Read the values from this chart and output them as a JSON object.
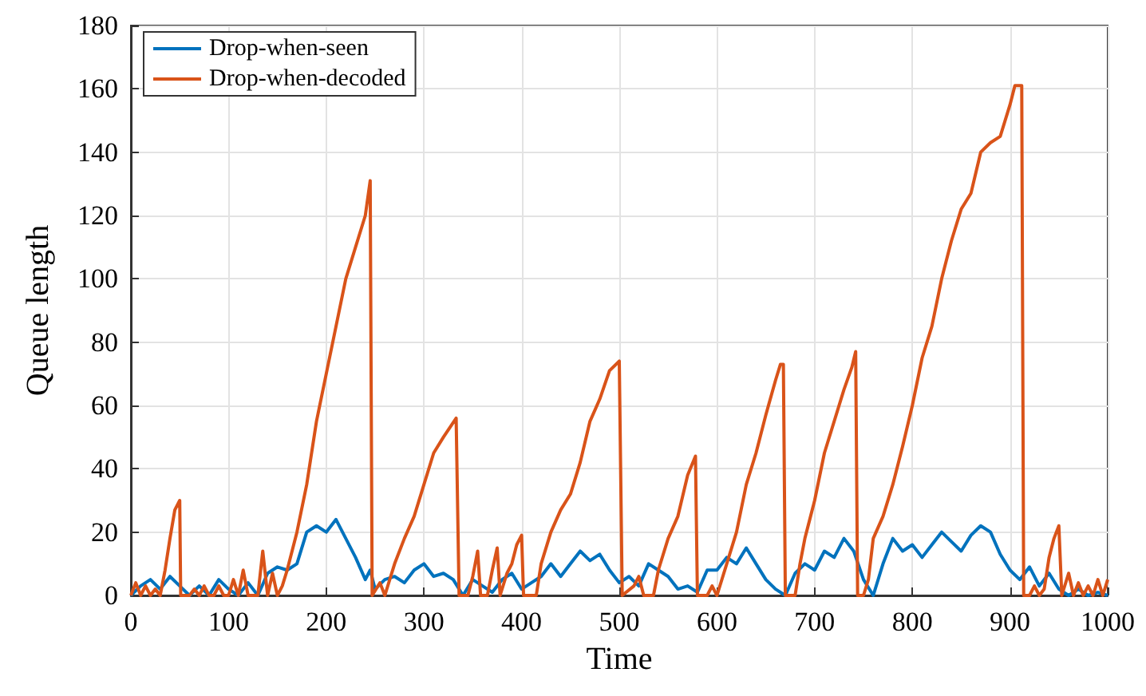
{
  "chart_data": {
    "type": "line",
    "xlabel": "Time",
    "ylabel": "Queue length",
    "xlim": [
      0,
      1000
    ],
    "xticks": [
      0,
      100,
      200,
      300,
      400,
      500,
      600,
      700,
      800,
      900,
      1000
    ],
    "ylim": [
      0,
      180
    ],
    "yticks": [
      0,
      20,
      40,
      60,
      80,
      100,
      120,
      140,
      160,
      180
    ],
    "grid": true,
    "legend": "top left",
    "marker": "none",
    "line_style": "solid",
    "series": [
      {
        "name": "Drop-when-seen",
        "color": "#0072bd",
        "x": [
          0,
          10,
          20,
          30,
          40,
          50,
          60,
          70,
          80,
          90,
          100,
          110,
          120,
          130,
          140,
          150,
          160,
          170,
          180,
          190,
          200,
          210,
          220,
          230,
          240,
          245,
          250,
          260,
          270,
          280,
          290,
          300,
          310,
          320,
          330,
          340,
          350,
          360,
          370,
          380,
          390,
          400,
          410,
          420,
          430,
          440,
          450,
          460,
          470,
          480,
          490,
          500,
          510,
          520,
          530,
          540,
          550,
          560,
          570,
          580,
          590,
          600,
          610,
          620,
          630,
          640,
          650,
          660,
          670,
          680,
          690,
          700,
          710,
          720,
          730,
          740,
          750,
          760,
          770,
          780,
          790,
          800,
          810,
          820,
          830,
          840,
          850,
          860,
          870,
          880,
          890,
          900,
          910,
          920,
          930,
          940,
          950,
          960,
          970,
          980,
          990,
          1000
        ],
        "values": [
          0,
          3,
          5,
          2,
          6,
          3,
          0,
          3,
          0,
          5,
          2,
          0,
          4,
          0,
          7,
          9,
          8,
          10,
          20,
          22,
          20,
          24,
          18,
          12,
          5,
          8,
          2,
          5,
          6,
          4,
          8,
          10,
          6,
          7,
          5,
          0,
          5,
          3,
          1,
          5,
          7,
          2,
          4,
          6,
          10,
          6,
          10,
          14,
          11,
          13,
          8,
          4,
          6,
          3,
          10,
          8,
          6,
          2,
          3,
          1,
          8,
          8,
          12,
          10,
          15,
          10,
          5,
          2,
          0,
          7,
          10,
          8,
          14,
          12,
          18,
          14,
          5,
          0,
          10,
          18,
          14,
          16,
          12,
          16,
          20,
          17,
          14,
          19,
          22,
          20,
          13,
          8,
          5,
          9,
          3,
          7,
          2,
          0,
          2,
          0,
          1,
          0
        ]
      },
      {
        "name": "Drop-when-decoded",
        "color": "#d95319",
        "x": [
          0,
          5,
          10,
          15,
          20,
          25,
          30,
          35,
          40,
          45,
          50,
          51,
          60,
          65,
          70,
          75,
          80,
          85,
          90,
          95,
          100,
          105,
          110,
          115,
          120,
          130,
          135,
          140,
          145,
          150,
          155,
          160,
          170,
          180,
          190,
          200,
          210,
          220,
          230,
          240,
          245,
          247,
          255,
          260,
          265,
          270,
          280,
          290,
          300,
          310,
          320,
          333,
          336,
          345,
          350,
          355,
          358,
          365,
          370,
          375,
          378,
          385,
          390,
          395,
          400,
          402,
          415,
          420,
          430,
          440,
          450,
          460,
          470,
          480,
          490,
          500,
          503,
          515,
          520,
          525,
          535,
          540,
          550,
          560,
          570,
          578,
          580,
          590,
          595,
          600,
          610,
          620,
          630,
          640,
          650,
          660,
          665,
          668,
          670,
          680,
          685,
          690,
          700,
          710,
          720,
          730,
          738,
          742,
          744,
          750,
          755,
          760,
          770,
          780,
          790,
          800,
          810,
          820,
          830,
          840,
          850,
          860,
          870,
          880,
          890,
          900,
          905,
          912,
          914,
          920,
          925,
          930,
          935,
          940,
          945,
          950,
          953,
          960,
          965,
          970,
          975,
          980,
          985,
          990,
          995,
          1000
        ],
        "values": [
          0,
          4,
          0,
          3,
          0,
          2,
          0,
          8,
          18,
          27,
          30,
          0,
          0,
          2,
          0,
          3,
          0,
          0,
          3,
          0,
          0,
          5,
          0,
          8,
          0,
          0,
          14,
          0,
          7,
          0,
          3,
          8,
          20,
          35,
          55,
          70,
          85,
          100,
          110,
          120,
          131,
          0,
          4,
          0,
          5,
          10,
          18,
          25,
          35,
          45,
          50,
          56,
          0,
          0,
          6,
          14,
          0,
          0,
          8,
          15,
          0,
          7,
          10,
          16,
          19,
          0,
          0,
          10,
          20,
          27,
          32,
          42,
          55,
          62,
          71,
          74,
          0,
          3,
          6,
          0,
          0,
          8,
          18,
          25,
          38,
          44,
          0,
          0,
          3,
          0,
          10,
          20,
          35,
          45,
          57,
          68,
          73,
          73,
          0,
          0,
          10,
          18,
          30,
          45,
          55,
          65,
          72,
          77,
          0,
          0,
          5,
          18,
          25,
          35,
          47,
          60,
          75,
          85,
          100,
          112,
          122,
          127,
          140,
          143,
          145,
          155,
          161,
          161,
          0,
          0,
          3,
          0,
          2,
          12,
          18,
          22,
          0,
          7,
          0,
          4,
          0,
          3,
          0,
          5,
          0,
          5
        ]
      }
    ]
  }
}
